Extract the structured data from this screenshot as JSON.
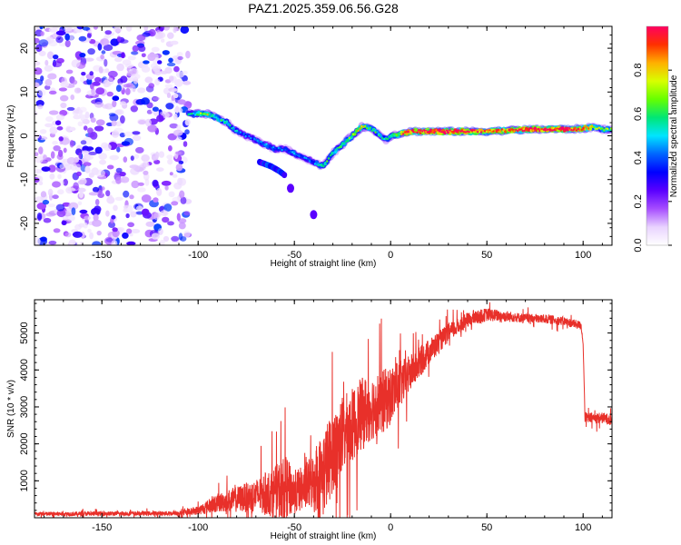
{
  "title": "PAZ1.2025.359.06.56.G28",
  "colors": {
    "snr_line": "#e8302a",
    "frame": "#000000"
  },
  "colorbar_stops": [
    "#ffffff",
    "#e9d3ff",
    "#a64dff",
    "#5a00ff",
    "#0000ff",
    "#0066ff",
    "#00e5ff",
    "#00e676",
    "#66ff00",
    "#d8ff00",
    "#ffb000",
    "#ff3000",
    "#ff0060"
  ],
  "chart_data": [
    {
      "type": "heatmap",
      "name": "spectrogram",
      "xlabel": "Height of straight line (km)",
      "ylabel": "Frequency (Hz)",
      "xlim": [
        -185,
        115
      ],
      "ylim": [
        -25,
        25
      ],
      "xticks": [
        -150,
        -100,
        -50,
        0,
        50,
        100
      ],
      "yticks": [
        -20,
        -10,
        0,
        10,
        20
      ],
      "colorbar": {
        "label": "Normalized spectral amplitude",
        "range": [
          0,
          1
        ],
        "ticks": [
          0.0,
          0.2,
          0.4,
          0.6,
          0.8
        ]
      },
      "noise_region_x": [
        -185,
        -105
      ],
      "ridge": {
        "x": [
          -105,
          -100,
          -95,
          -90,
          -85,
          -80,
          -75,
          -70,
          -65,
          -60,
          -55,
          -50,
          -45,
          -40,
          -35,
          -30,
          -25,
          -20,
          -15,
          -12,
          -8,
          -5,
          -2,
          0,
          5,
          10,
          20,
          30,
          40,
          50,
          60,
          70,
          80,
          90,
          100,
          105,
          110,
          115
        ],
        "freq": [
          5,
          5,
          5,
          4,
          3,
          1,
          0,
          -1,
          -2,
          -3,
          -3,
          -4,
          -5,
          -6,
          -7,
          -4,
          -2,
          0,
          2,
          2,
          1,
          0,
          -1,
          0,
          0.5,
          1,
          1,
          1,
          1,
          1,
          1.2,
          1.4,
          1.5,
          1.5,
          1.6,
          2,
          1.5,
          1.5
        ],
        "amp": [
          0.4,
          0.5,
          0.55,
          0.45,
          0.4,
          0.35,
          0.3,
          0.3,
          0.35,
          0.3,
          0.3,
          0.35,
          0.3,
          0.3,
          0.45,
          0.45,
          0.5,
          0.55,
          0.6,
          0.55,
          0.45,
          0.4,
          0.4,
          0.45,
          0.6,
          0.85,
          0.9,
          0.9,
          0.85,
          0.75,
          0.8,
          0.85,
          0.9,
          0.9,
          0.8,
          0.6,
          0.5,
          0.5
        ]
      },
      "secondary_ridge": {
        "x": [
          -68,
          -62,
          -58,
          -55
        ],
        "freq": [
          -6,
          -7,
          -8,
          -9
        ]
      },
      "isolated_blobs": [
        {
          "x": -52,
          "freq": -12
        },
        {
          "x": -40,
          "freq": -18
        }
      ]
    },
    {
      "type": "line",
      "name": "snr",
      "xlabel": "Height of straight line (km)",
      "ylabel": "SNR (10 * v/v)",
      "xlim": [
        -185,
        115
      ],
      "ylim": [
        0,
        5900
      ],
      "xticks": [
        -150,
        -100,
        -50,
        0,
        50,
        100
      ],
      "yticks": [
        1000,
        2000,
        3000,
        4000,
        5000
      ],
      "envelope": {
        "x": [
          -185,
          -150,
          -110,
          -100,
          -90,
          -80,
          -70,
          -60,
          -55,
          -50,
          -45,
          -40,
          -35,
          -30,
          -25,
          -20,
          -15,
          -10,
          -5,
          0,
          10,
          20,
          30,
          40,
          50,
          60,
          70,
          80,
          90,
          99,
          100,
          101,
          110,
          115
        ],
        "mean": [
          100,
          110,
          120,
          200,
          400,
          500,
          600,
          700,
          800,
          700,
          800,
          1000,
          1200,
          1800,
          2200,
          2500,
          2800,
          3000,
          3100,
          3300,
          3900,
          4500,
          5000,
          5350,
          5500,
          5450,
          5400,
          5380,
          5320,
          5200,
          4700,
          2700,
          2700,
          2650
        ],
        "noise": [
          60,
          60,
          60,
          120,
          250,
          350,
          450,
          700,
          900,
          600,
          600,
          800,
          1200,
          1100,
          1100,
          1000,
          1000,
          900,
          900,
          800,
          500,
          350,
          250,
          200,
          180,
          150,
          120,
          120,
          120,
          120,
          0,
          150,
          150,
          150
        ]
      }
    }
  ]
}
